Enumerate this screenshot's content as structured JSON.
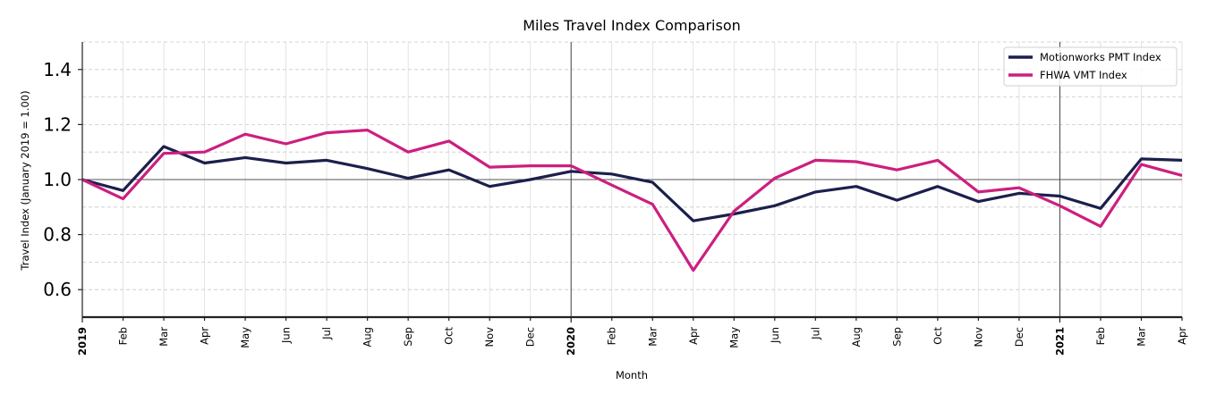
{
  "chart_data": {
    "type": "line",
    "title": "Miles Travel Index Comparison",
    "xlabel": "Month",
    "ylabel": "Travel Index (January 2019 = 1.00)",
    "ylim": [
      0.5,
      1.5
    ],
    "yticks": [
      0.6,
      0.8,
      1.0,
      1.2,
      1.4
    ],
    "ytick_labels": [
      "0.6",
      "0.8",
      "1.0",
      "1.2",
      "1.4"
    ],
    "grid": true,
    "legend_position": "upper right",
    "x": [
      "2019",
      "Feb",
      "Mar",
      "Apr",
      "May",
      "Jun",
      "Jul",
      "Aug",
      "Sep",
      "Oct",
      "Nov",
      "Dec",
      "2020",
      "Feb",
      "Mar",
      "Apr",
      "May",
      "Jun",
      "Jul",
      "Aug",
      "Sep",
      "Oct",
      "Nov",
      "Dec",
      "2021",
      "Feb",
      "Mar",
      "Apr"
    ],
    "year_ticks": [
      "2019",
      "2020",
      "2021"
    ],
    "reference_line": 1.0,
    "series": [
      {
        "name": "Motionworks PMT Index",
        "color": "#1c1f4c",
        "values": [
          1.0,
          0.96,
          1.12,
          1.06,
          1.08,
          1.06,
          1.07,
          1.04,
          1.005,
          1.035,
          0.975,
          1.0,
          1.03,
          1.02,
          0.99,
          0.85,
          0.875,
          0.905,
          0.955,
          0.975,
          0.925,
          0.975,
          0.92,
          0.95,
          0.94,
          0.895,
          1.075,
          1.07
        ]
      },
      {
        "name": "FHWA VMT Index",
        "color": "#cc1f7f",
        "values": [
          1.0,
          0.93,
          1.095,
          1.1,
          1.165,
          1.13,
          1.17,
          1.18,
          1.1,
          1.14,
          1.045,
          1.05,
          1.05,
          0.98,
          0.91,
          0.67,
          0.885,
          1.005,
          1.07,
          1.065,
          1.035,
          1.07,
          0.955,
          0.97,
          0.905,
          0.83,
          1.055,
          1.015
        ]
      }
    ]
  }
}
